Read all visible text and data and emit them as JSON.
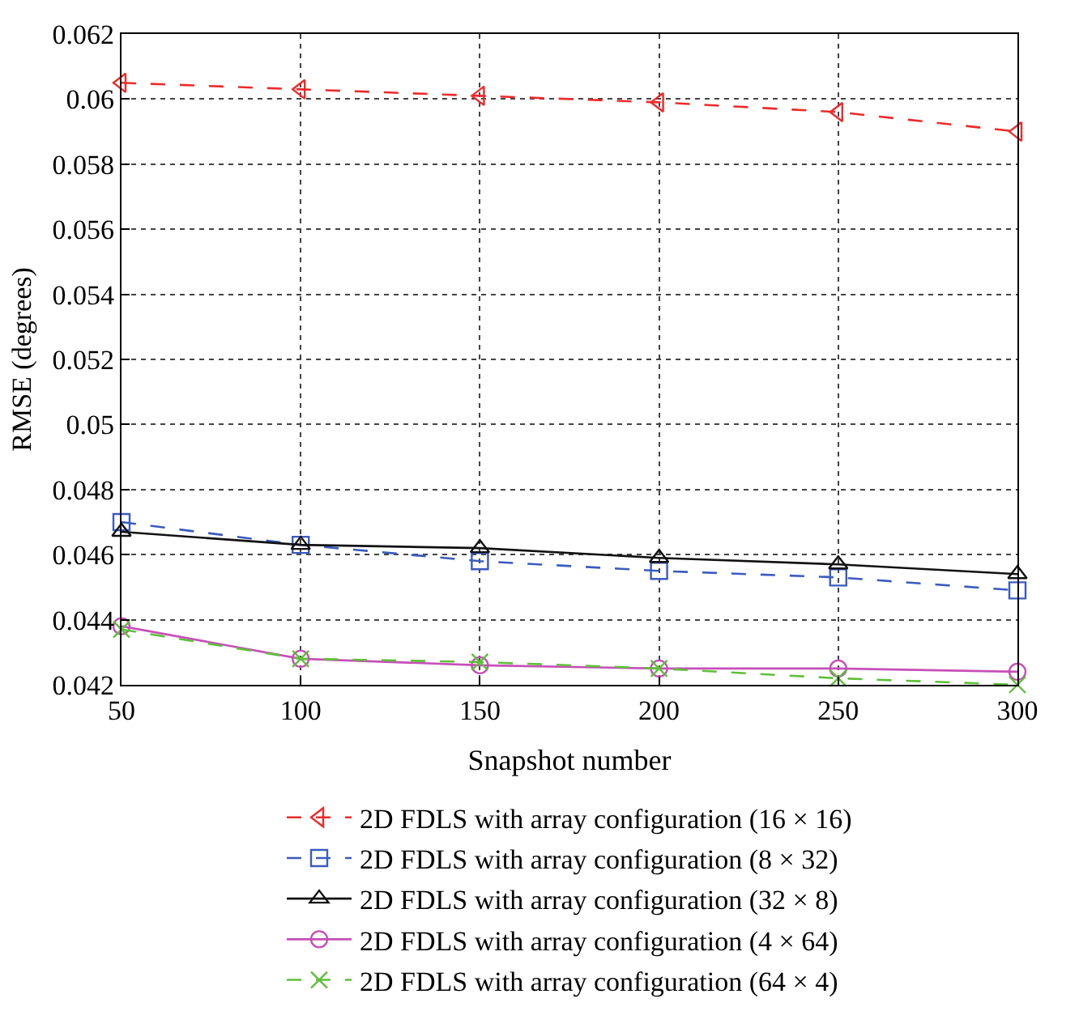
{
  "chart_data": {
    "type": "line",
    "xlabel": "Snapshot number",
    "ylabel": "RMSE (degrees)",
    "x": [
      50,
      100,
      150,
      200,
      250,
      300
    ],
    "series": [
      {
        "name": "2D FDLS with array configuration (16 × 16)",
        "color": "#ee2a2a",
        "marker": "triangle-left",
        "line_style": "dashed",
        "values": [
          0.0605,
          0.0603,
          0.0601,
          0.0599,
          0.0596,
          0.059
        ]
      },
      {
        "name": "2D FDLS with array configuration (8 × 32)",
        "color": "#3a5bbf",
        "marker": "square",
        "line_style": "dashed",
        "values": [
          0.047,
          0.0463,
          0.0458,
          0.0455,
          0.0453,
          0.0449
        ]
      },
      {
        "name": "2D FDLS with array configuration (32 × 8)",
        "color": "#111111",
        "marker": "triangle",
        "line_style": "solid",
        "values": [
          0.0467,
          0.0463,
          0.0462,
          0.0459,
          0.0457,
          0.0454
        ]
      },
      {
        "name": "2D FDLS with array configuration (4 × 64)",
        "color": "#c64fb8",
        "marker": "circle",
        "line_style": "solid",
        "values": [
          0.0438,
          0.0428,
          0.0426,
          0.0425,
          0.0425,
          0.0424
        ]
      },
      {
        "name": "2D FDLS with array configuration (64 × 4)",
        "color": "#5fbf3a",
        "marker": "cross",
        "line_style": "dashed",
        "values": [
          0.0437,
          0.0428,
          0.0427,
          0.0425,
          0.0422,
          0.042
        ]
      }
    ],
    "xlim": [
      50,
      300
    ],
    "xticks": [
      50,
      100,
      150,
      200,
      250,
      300
    ],
    "ylim": [
      0.042,
      0.062
    ],
    "yticks": [
      0.042,
      0.044,
      0.046,
      0.048,
      0.05,
      0.052,
      0.054,
      0.056,
      0.058,
      0.06,
      0.062
    ],
    "grid": true,
    "legend": "bottom"
  }
}
